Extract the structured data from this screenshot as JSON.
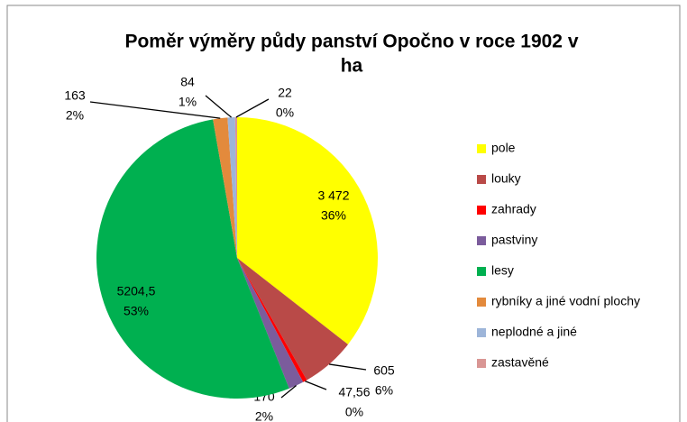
{
  "chart_data": {
    "type": "pie",
    "title": "Poměr výměry půdy panství Opočno v roce 1902 v ha",
    "categories": [
      "pole",
      "louky",
      "zahrady",
      "pastviny",
      "lesy",
      "rybníky a jiné vodní plochy",
      "neplodné a jiné",
      "zastavěné"
    ],
    "values": [
      3472,
      605,
      47.56,
      170,
      5204.5,
      163,
      84,
      22
    ],
    "value_labels": [
      "3 472",
      "605",
      "47,56",
      "170",
      "5204,5",
      "163",
      "84",
      "22"
    ],
    "percent_labels": [
      "36%",
      "6%",
      "0%",
      "2%",
      "53%",
      "2%",
      "1%",
      "0%"
    ],
    "colors": [
      "#ffff00",
      "#b94a48",
      "#ff0000",
      "#7b5c9c",
      "#00b050",
      "#e38a3c",
      "#9db5d9",
      "#d99694"
    ],
    "legend": "right"
  }
}
